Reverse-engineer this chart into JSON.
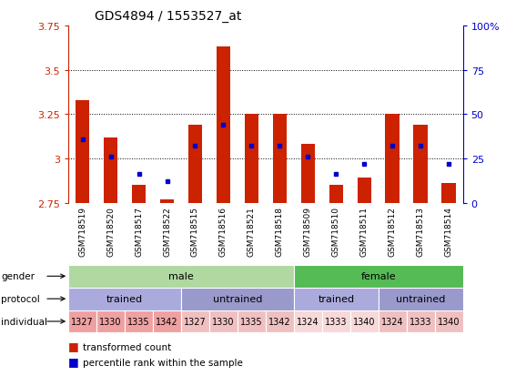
{
  "title": "GDS4894 / 1553527_at",
  "samples": [
    "GSM718519",
    "GSM718520",
    "GSM718517",
    "GSM718522",
    "GSM718515",
    "GSM718516",
    "GSM718521",
    "GSM718518",
    "GSM718509",
    "GSM718510",
    "GSM718511",
    "GSM718512",
    "GSM718513",
    "GSM718514"
  ],
  "bar_values": [
    3.33,
    3.12,
    2.85,
    2.77,
    3.19,
    3.63,
    3.25,
    3.25,
    3.08,
    2.85,
    2.89,
    3.25,
    3.19,
    2.86
  ],
  "bar_base": 2.75,
  "percentile_values": [
    3.11,
    3.01,
    2.91,
    2.87,
    3.07,
    3.19,
    3.07,
    3.07,
    3.01,
    2.91,
    2.97,
    3.07,
    3.07,
    2.97
  ],
  "ylim_left": [
    2.75,
    3.75
  ],
  "ylim_right": [
    0,
    100
  ],
  "yticks_left": [
    2.75,
    3.0,
    3.25,
    3.5,
    3.75
  ],
  "ytick_labels_left": [
    "2.75",
    "3",
    "3.25",
    "3.5",
    "3.75"
  ],
  "yticks_right": [
    0,
    25,
    50,
    75,
    100
  ],
  "ytick_labels_right": [
    "0",
    "25",
    "50",
    "75",
    "100%"
  ],
  "bar_color": "#cc2200",
  "percentile_color": "#0000cc",
  "bg_color": "#ffffff",
  "grid_color": "#000000",
  "xtick_bg_color": "#c0c0c0",
  "gender_groups": [
    {
      "label": "male",
      "start": 0,
      "end": 7,
      "color": "#b0d8a0"
    },
    {
      "label": "female",
      "start": 8,
      "end": 13,
      "color": "#55bb55"
    }
  ],
  "protocol_groups": [
    {
      "label": "trained",
      "start": 0,
      "end": 3,
      "color": "#aaaadd"
    },
    {
      "label": "untrained",
      "start": 4,
      "end": 7,
      "color": "#9999cc"
    },
    {
      "label": "trained",
      "start": 8,
      "end": 10,
      "color": "#aaaadd"
    },
    {
      "label": "untrained",
      "start": 11,
      "end": 13,
      "color": "#9999cc"
    }
  ],
  "individual_groups": [
    {
      "label": "1327",
      "start": 0,
      "end": 0,
      "color": "#f0a0a0"
    },
    {
      "label": "1330",
      "start": 1,
      "end": 1,
      "color": "#f0a0a0"
    },
    {
      "label": "1335",
      "start": 2,
      "end": 2,
      "color": "#f0a0a0"
    },
    {
      "label": "1342",
      "start": 3,
      "end": 3,
      "color": "#f0a0a0"
    },
    {
      "label": "1327",
      "start": 4,
      "end": 4,
      "color": "#f0c0c0"
    },
    {
      "label": "1330",
      "start": 5,
      "end": 5,
      "color": "#f0c0c0"
    },
    {
      "label": "1335",
      "start": 6,
      "end": 6,
      "color": "#f0c0c0"
    },
    {
      "label": "1342",
      "start": 7,
      "end": 7,
      "color": "#f0c0c0"
    },
    {
      "label": "1324",
      "start": 8,
      "end": 8,
      "color": "#f8d8d8"
    },
    {
      "label": "1333",
      "start": 9,
      "end": 9,
      "color": "#f8d8d8"
    },
    {
      "label": "1340",
      "start": 10,
      "end": 10,
      "color": "#f8d8d8"
    },
    {
      "label": "1324",
      "start": 11,
      "end": 11,
      "color": "#f0c0c0"
    },
    {
      "label": "1333",
      "start": 12,
      "end": 12,
      "color": "#f0c0c0"
    },
    {
      "label": "1340",
      "start": 13,
      "end": 13,
      "color": "#f0c0c0"
    }
  ],
  "row_labels": [
    "gender",
    "protocol",
    "individual"
  ],
  "legend_items": [
    {
      "label": "transformed count",
      "color": "#cc2200"
    },
    {
      "label": "percentile rank within the sample",
      "color": "#0000cc"
    }
  ],
  "n_samples": 14,
  "bar_width": 0.5
}
